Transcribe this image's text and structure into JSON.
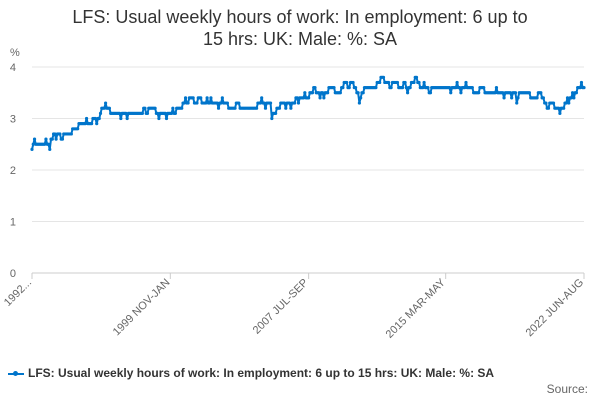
{
  "chart_data": {
    "type": "line",
    "title": "LFS: Usual weekly hours of work: In employment: 6 up to 15 hrs: UK: Male: %: SA",
    "ylabel": "%",
    "ylim": [
      0,
      4
    ],
    "yticks": [
      0,
      1,
      2,
      3,
      4
    ],
    "xtick_labels": [
      "1992...",
      "1999 NOV-JAN",
      "2007 JUL-SEP",
      "2015 MAR-MAY",
      "2022 JUN-AUG"
    ],
    "grid": true,
    "legend_position": "bottom",
    "series": [
      {
        "name": "LFS: Usual weekly hours of work: In employment: 6 up to 15 hrs: UK: Male: %: SA",
        "color": "#0075cb",
        "x_start_period": "1992 MAR-MAY",
        "period_step": "month",
        "values": [
          2.4,
          2.5,
          2.6,
          2.5,
          2.5,
          2.5,
          2.5,
          2.5,
          2.5,
          2.5,
          2.5,
          2.6,
          2.5,
          2.5,
          2.4,
          2.6,
          2.6,
          2.7,
          2.7,
          2.6,
          2.7,
          2.7,
          2.7,
          2.6,
          2.6,
          2.7,
          2.7,
          2.7,
          2.7,
          2.7,
          2.7,
          2.7,
          2.8,
          2.8,
          2.8,
          2.8,
          2.8,
          2.9,
          2.9,
          2.9,
          2.9,
          2.9,
          2.9,
          3.0,
          2.9,
          2.9,
          2.9,
          2.9,
          3.0,
          3.0,
          3.0,
          2.9,
          3.0,
          3.0,
          3.1,
          3.2,
          3.2,
          3.2,
          3.3,
          3.2,
          3.2,
          3.2,
          3.1,
          3.1,
          3.1,
          3.1,
          3.1,
          3.1,
          3.1,
          3.1,
          3.0,
          3.1,
          3.1,
          3.1,
          3.1,
          3.0,
          3.1,
          3.1,
          3.1,
          3.1,
          3.1,
          3.1,
          3.1,
          3.1,
          3.1,
          3.1,
          3.1,
          3.1,
          3.2,
          3.2,
          3.1,
          3.1,
          3.2,
          3.2,
          3.2,
          3.2,
          3.2,
          3.2,
          3.1,
          3.1,
          3.0,
          3.1,
          3.1,
          3.1,
          3.1,
          3.1,
          3.0,
          3.1,
          3.1,
          3.1,
          3.1,
          3.2,
          3.1,
          3.1,
          3.2,
          3.2,
          3.2,
          3.2,
          3.2,
          3.3,
          3.3,
          3.4,
          3.3,
          3.3,
          3.4,
          3.4,
          3.4,
          3.4,
          3.3,
          3.3,
          3.3,
          3.4,
          3.4,
          3.4,
          3.3,
          3.3,
          3.3,
          3.3,
          3.4,
          3.3,
          3.3,
          3.4,
          3.3,
          3.3,
          3.3,
          3.3,
          3.3,
          3.2,
          3.3,
          3.3,
          3.4,
          3.3,
          3.3,
          3.3,
          3.3,
          3.2,
          3.2,
          3.2,
          3.2,
          3.2,
          3.2,
          3.3,
          3.3,
          3.3,
          3.2,
          3.2,
          3.2,
          3.2,
          3.2,
          3.2,
          3.2,
          3.2,
          3.2,
          3.2,
          3.2,
          3.2,
          3.2,
          3.2,
          3.3,
          3.3,
          3.3,
          3.4,
          3.3,
          3.3,
          3.2,
          3.3,
          3.3,
          3.3,
          3.3,
          3.0,
          3.1,
          3.1,
          3.1,
          3.2,
          3.2,
          3.2,
          3.3,
          3.3,
          3.3,
          3.3,
          3.2,
          3.3,
          3.3,
          3.3,
          3.2,
          3.3,
          3.3,
          3.3,
          3.4,
          3.4,
          3.3,
          3.4,
          3.4,
          3.4,
          3.4,
          3.5,
          3.4,
          3.4,
          3.4,
          3.5,
          3.5,
          3.5,
          3.6,
          3.6,
          3.5,
          3.5,
          3.5,
          3.4,
          3.5,
          3.5,
          3.4,
          3.5,
          3.5,
          3.5,
          3.6,
          3.6,
          3.6,
          3.6,
          3.6,
          3.5,
          3.5,
          3.5,
          3.5,
          3.5,
          3.6,
          3.6,
          3.7,
          3.7,
          3.7,
          3.6,
          3.6,
          3.7,
          3.7,
          3.7,
          3.6,
          3.6,
          3.5,
          3.5,
          3.3,
          3.4,
          3.5,
          3.5,
          3.6,
          3.6,
          3.6,
          3.6,
          3.6,
          3.6,
          3.6,
          3.6,
          3.6,
          3.6,
          3.7,
          3.7,
          3.7,
          3.8,
          3.8,
          3.8,
          3.7,
          3.7,
          3.7,
          3.7,
          3.6,
          3.6,
          3.7,
          3.7,
          3.7,
          3.7,
          3.7,
          3.6,
          3.6,
          3.6,
          3.6,
          3.7,
          3.7,
          3.6,
          3.5,
          3.6,
          3.6,
          3.7,
          3.7,
          3.7,
          3.8,
          3.8,
          3.7,
          3.7,
          3.6,
          3.6,
          3.6,
          3.7,
          3.6,
          3.6,
          3.6,
          3.5,
          3.5,
          3.6,
          3.6,
          3.6,
          3.6,
          3.6,
          3.6,
          3.6,
          3.6,
          3.6,
          3.6,
          3.6,
          3.6,
          3.6,
          3.6,
          3.6,
          3.5,
          3.6,
          3.6,
          3.6,
          3.6,
          3.7,
          3.6,
          3.6,
          3.5,
          3.6,
          3.6,
          3.6,
          3.7,
          3.6,
          3.6,
          3.6,
          3.6,
          3.6,
          3.5,
          3.5,
          3.5,
          3.5,
          3.5,
          3.6,
          3.6,
          3.6,
          3.6,
          3.5,
          3.5,
          3.5,
          3.5,
          3.5,
          3.5,
          3.5,
          3.5,
          3.5,
          3.6,
          3.5,
          3.5,
          3.5,
          3.5,
          3.5,
          3.4,
          3.5,
          3.5,
          3.5,
          3.5,
          3.5,
          3.4,
          3.5,
          3.5,
          3.5,
          3.3,
          3.4,
          3.5,
          3.5,
          3.5,
          3.5,
          3.5,
          3.5,
          3.5,
          3.5,
          3.5,
          3.4,
          3.4,
          3.4,
          3.4,
          3.4,
          3.4,
          3.5,
          3.5,
          3.5,
          3.4,
          3.4,
          3.3,
          3.3,
          3.2,
          3.2,
          3.3,
          3.3,
          3.3,
          3.3,
          3.2,
          3.2,
          3.2,
          3.2,
          3.1,
          3.2,
          3.2,
          3.2,
          3.3,
          3.3,
          3.4,
          3.3,
          3.4,
          3.4,
          3.5,
          3.4,
          3.5,
          3.5,
          3.6,
          3.6,
          3.6,
          3.7,
          3.6,
          3.6
        ]
      }
    ]
  },
  "source_label": "Source:"
}
